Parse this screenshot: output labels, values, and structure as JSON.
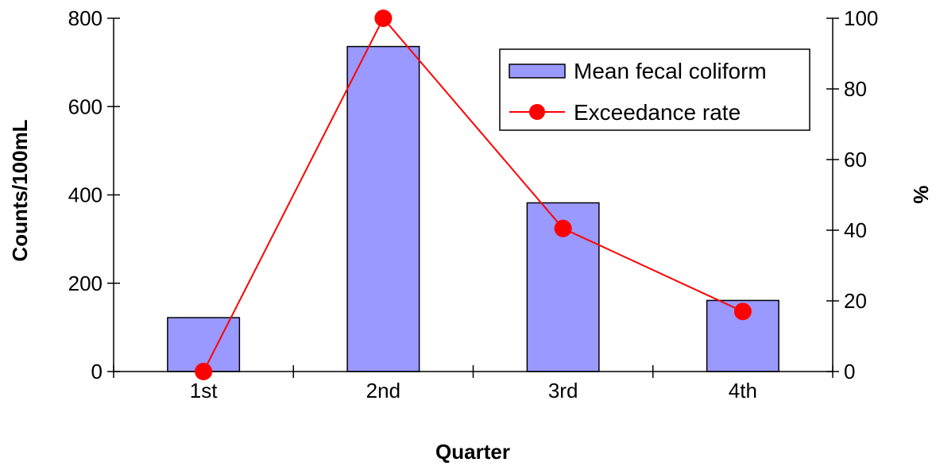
{
  "chart_data": {
    "type": "bar",
    "categories": [
      "1st",
      "2nd",
      "3rd",
      "4th"
    ],
    "xlabel": "Quarter",
    "ylabel": "Counts/100mL",
    "y2label": "%",
    "ylim": [
      0,
      800
    ],
    "y2lim": [
      0,
      100
    ],
    "yticks": [
      "0",
      "200",
      "400",
      "600",
      "800"
    ],
    "y2ticks": [
      "0",
      "20",
      "40",
      "60",
      "80",
      "100"
    ],
    "grid": false,
    "legend_position": "top-right",
    "series": [
      {
        "name": "Mean fecal coliform",
        "type": "bar",
        "axis": "left",
        "values": [
          122,
          736,
          382,
          161
        ],
        "color": "#9999ff"
      },
      {
        "name": "Exceedance rate",
        "type": "line",
        "axis": "right",
        "values": [
          0,
          100,
          40.5,
          17
        ],
        "color": "#ff0000"
      }
    ]
  }
}
